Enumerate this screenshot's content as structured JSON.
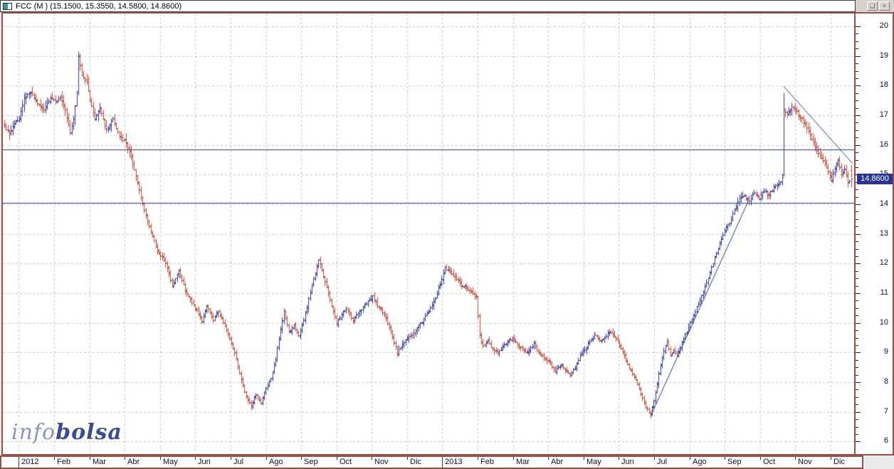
{
  "window": {
    "title": "FCC (M ) (15.1500, 15.3550, 14.5800, 14.8600)",
    "restore_glyph": "❏",
    "close_glyph": "×"
  },
  "watermark": {
    "info": "info",
    "bolsa": "bolsa"
  },
  "chart_data": {
    "type": "bar",
    "subtype": "ohlc-daily-bars",
    "symbol": "FCC",
    "market": "M",
    "title": "FCC (M ) (15.1500, 15.3550, 14.5800, 14.8600)",
    "last_bar": {
      "open": 15.15,
      "high": 15.355,
      "low": 14.58,
      "close": 14.86
    },
    "last_price_label": "14.8600",
    "y_axis": {
      "labels": [
        20,
        19,
        18,
        17,
        16,
        15,
        14,
        13,
        12,
        11,
        10,
        9,
        8,
        7,
        6
      ],
      "major_step": 1,
      "minor_step": 0.25,
      "grid": "dashed"
    },
    "x_axis": {
      "labels": [
        "2012",
        "Feb",
        "Mar",
        "Abr",
        "May",
        "Jun",
        "Jul",
        "Ago",
        "Sep",
        "Oct",
        "Nov",
        "Dic",
        "2013",
        "Feb",
        "Mar",
        "Abr",
        "May",
        "Jun",
        "Jul",
        "Ago",
        "Sep",
        "Oct",
        "Nov",
        "Dic"
      ],
      "year_boundaries": [
        0,
        12
      ],
      "grid": "dashed"
    },
    "num_bars": 516,
    "render_seed": 11,
    "close_path": [
      [
        0,
        16.6
      ],
      [
        3,
        16.4
      ],
      [
        7,
        16.8
      ],
      [
        9,
        16.9
      ],
      [
        12,
        17.6
      ],
      [
        16,
        17.8
      ],
      [
        20,
        17.4
      ],
      [
        24,
        17.2
      ],
      [
        28,
        17.6
      ],
      [
        31,
        17.5
      ],
      [
        34,
        17.6
      ],
      [
        37,
        17.2
      ],
      [
        40,
        16.4
      ],
      [
        42,
        16.9
      ],
      [
        44,
        17.8
      ],
      [
        45,
        19.0
      ],
      [
        47,
        18.4
      ],
      [
        50,
        18.1
      ],
      [
        52,
        17.5
      ],
      [
        55,
        16.9
      ],
      [
        58,
        17.3
      ],
      [
        62,
        16.5
      ],
      [
        66,
        16.9
      ],
      [
        70,
        16.3
      ],
      [
        74,
        16.1
      ],
      [
        77,
        15.6
      ],
      [
        81,
        14.7
      ],
      [
        85,
        13.8
      ],
      [
        89,
        13.1
      ],
      [
        93,
        12.4
      ],
      [
        96,
        12.2
      ],
      [
        99,
        11.9
      ],
      [
        102,
        11.2
      ],
      [
        106,
        11.8
      ],
      [
        110,
        11.1
      ],
      [
        114,
        10.7
      ],
      [
        117,
        10.4
      ],
      [
        120,
        10.1
      ],
      [
        123,
        10.6
      ],
      [
        127,
        10.1
      ],
      [
        130,
        10.4
      ],
      [
        134,
        9.9
      ],
      [
        137,
        9.5
      ],
      [
        141,
        8.8
      ],
      [
        144,
        8.1
      ],
      [
        147,
        7.5
      ],
      [
        150,
        7.2
      ],
      [
        153,
        7.6
      ],
      [
        156,
        7.3
      ],
      [
        159,
        7.8
      ],
      [
        162,
        8.1
      ],
      [
        165,
        8.8
      ],
      [
        167,
        9.5
      ],
      [
        170,
        10.4
      ],
      [
        173,
        9.7
      ],
      [
        176,
        9.9
      ],
      [
        179,
        9.6
      ],
      [
        182,
        10.1
      ],
      [
        185,
        10.8
      ],
      [
        188,
        11.5
      ],
      [
        191,
        12.1
      ],
      [
        194,
        11.6
      ],
      [
        197,
        11.0
      ],
      [
        200,
        10.4
      ],
      [
        202,
        10.0
      ],
      [
        205,
        10.3
      ],
      [
        208,
        10.5
      ],
      [
        212,
        10.1
      ],
      [
        216,
        10.4
      ],
      [
        220,
        10.7
      ],
      [
        224,
        10.9
      ],
      [
        228,
        10.5
      ],
      [
        231,
        10.3
      ],
      [
        235,
        9.7
      ],
      [
        239,
        9.0
      ],
      [
        242,
        9.3
      ],
      [
        245,
        9.5
      ],
      [
        248,
        9.6
      ],
      [
        252,
        9.9
      ],
      [
        256,
        10.2
      ],
      [
        260,
        10.6
      ],
      [
        263,
        11.0
      ],
      [
        266,
        11.5
      ],
      [
        268,
        11.9
      ],
      [
        271,
        11.7
      ],
      [
        274,
        11.5
      ],
      [
        278,
        11.3
      ],
      [
        281,
        11.2
      ],
      [
        284,
        11.0
      ],
      [
        287,
        10.9
      ],
      [
        289,
        9.6
      ],
      [
        291,
        9.2
      ],
      [
        294,
        9.4
      ],
      [
        297,
        9.1
      ],
      [
        300,
        9.0
      ],
      [
        303,
        9.2
      ],
      [
        306,
        9.4
      ],
      [
        309,
        9.5
      ],
      [
        313,
        9.2
      ],
      [
        318,
        9.0
      ],
      [
        322,
        9.3
      ],
      [
        326,
        8.9
      ],
      [
        331,
        8.7
      ],
      [
        335,
        8.4
      ],
      [
        339,
        8.6
      ],
      [
        344,
        8.2
      ],
      [
        347,
        8.5
      ],
      [
        350,
        8.9
      ],
      [
        355,
        9.3
      ],
      [
        359,
        9.6
      ],
      [
        363,
        9.4
      ],
      [
        368,
        9.7
      ],
      [
        372,
        9.5
      ],
      [
        376,
        9.0
      ],
      [
        380,
        8.5
      ],
      [
        384,
        8.1
      ],
      [
        387,
        7.6
      ],
      [
        390,
        7.2
      ],
      [
        393,
        6.9
      ],
      [
        395,
        7.4
      ],
      [
        397,
        8.0
      ],
      [
        399,
        8.6
      ],
      [
        401,
        9.1
      ],
      [
        403,
        9.4
      ],
      [
        405,
        8.9
      ],
      [
        407,
        9.1
      ],
      [
        409,
        8.9
      ],
      [
        411,
        9.2
      ],
      [
        413,
        9.5
      ],
      [
        415,
        9.7
      ],
      [
        417,
        10.0
      ],
      [
        420,
        10.4
      ],
      [
        423,
        10.8
      ],
      [
        426,
        11.2
      ],
      [
        429,
        11.7
      ],
      [
        432,
        12.2
      ],
      [
        435,
        12.7
      ],
      [
        438,
        13.1
      ],
      [
        441,
        13.4
      ],
      [
        444,
        13.8
      ],
      [
        447,
        14.2
      ],
      [
        450,
        14.3
      ],
      [
        453,
        14.1
      ],
      [
        456,
        14.4
      ],
      [
        459,
        14.2
      ],
      [
        462,
        14.5
      ],
      [
        465,
        14.3
      ],
      [
        468,
        14.6
      ],
      [
        471,
        14.7
      ],
      [
        473,
        14.9
      ],
      [
        474,
        17.2
      ],
      [
        476,
        17.0
      ],
      [
        479,
        17.3
      ],
      [
        482,
        17.1
      ],
      [
        485,
        16.9
      ],
      [
        488,
        16.6
      ],
      [
        491,
        16.2
      ],
      [
        494,
        15.8
      ],
      [
        497,
        15.6
      ],
      [
        499,
        15.4
      ],
      [
        501,
        15.1
      ],
      [
        503,
        14.8
      ],
      [
        505,
        15.2
      ],
      [
        507,
        15.5
      ],
      [
        509,
        15.0
      ],
      [
        511,
        15.2
      ],
      [
        513,
        14.7
      ],
      [
        515,
        14.86
      ]
    ],
    "special_bars": [
      {
        "day": 45,
        "high": 19.15
      },
      {
        "day": 170,
        "high": 10.5
      },
      {
        "day": 191,
        "high": 12.15
      },
      {
        "day": 474,
        "open": 15.0,
        "high": 17.78,
        "low": 14.95,
        "close": 17.25
      },
      {
        "day": 515,
        "open": 15.15,
        "high": 15.355,
        "low": 14.58,
        "close": 14.86
      }
    ],
    "support_resistance_lines": [
      {
        "price": 15.85
      },
      {
        "price": 14.05
      }
    ],
    "trendlines": [
      {
        "from_day": 393,
        "from_price": 6.85,
        "to_day": 452.5,
        "to_price": 14.1
      },
      {
        "from_day": 474,
        "from_price": 17.98,
        "to_day": 516,
        "to_price": 15.37
      }
    ],
    "colors": {
      "up_bar": "#2e3491",
      "down_bar": "#bd4434",
      "analysis_line": "#283593",
      "grid": "#c3c3c3",
      "frame": "#94504d",
      "last_price_bg": "#283593",
      "watermark_info": "#8a93c2",
      "watermark_bolsa": "#3a4a93"
    }
  }
}
